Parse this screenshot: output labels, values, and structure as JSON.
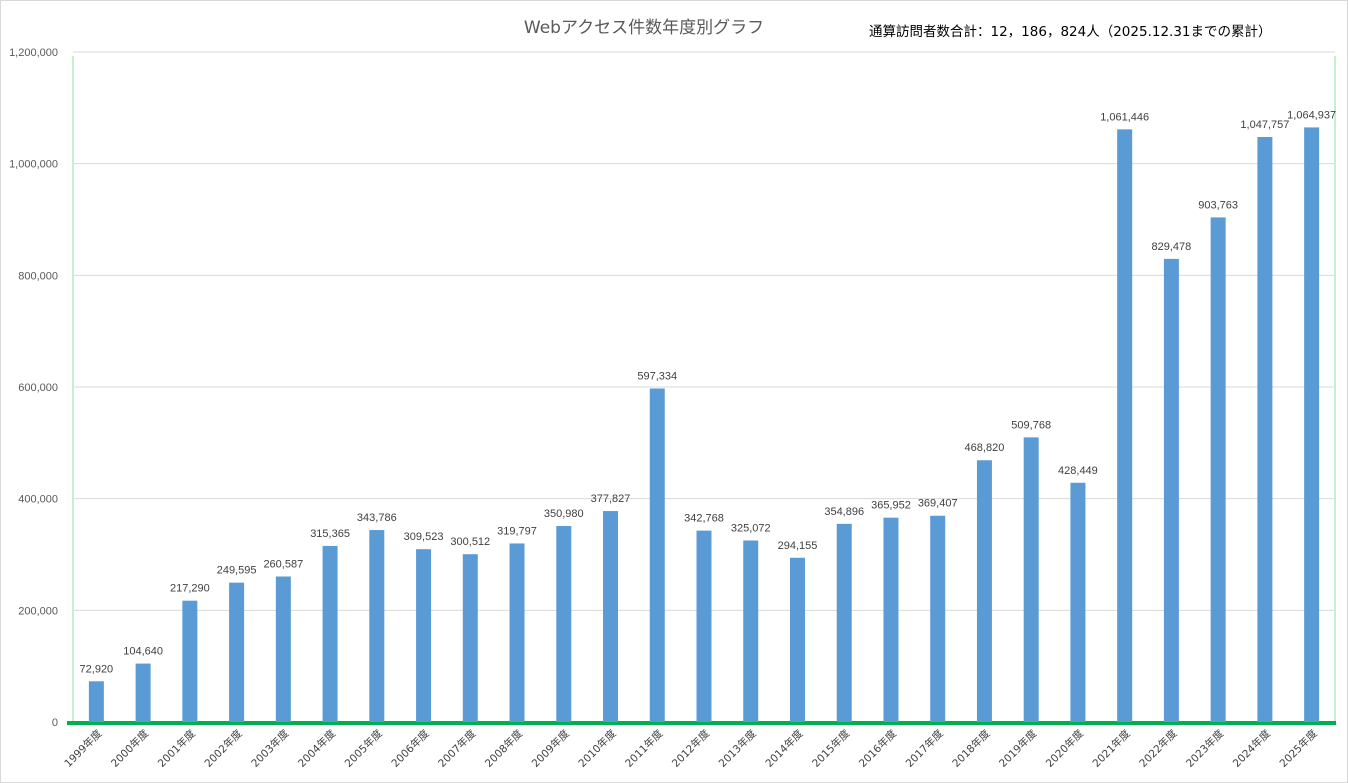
{
  "chart_data": {
    "type": "bar",
    "title": "Webアクセス件数年度別グラフ",
    "subtitle": "通算訪問者数合計：12，186，824人（2025.12.31までの累計）",
    "xlabel": "",
    "ylabel": "",
    "ylim": [
      0,
      1200000
    ],
    "y_ticks": [
      "0",
      "200,000",
      "400,000",
      "600,000",
      "800,000",
      "1,000,000",
      "1,200,000"
    ],
    "y_tick_values": [
      0,
      200000,
      400000,
      600000,
      800000,
      1000000,
      1200000
    ],
    "grid": true,
    "legend": "none",
    "bar_color": "#5b9bd5",
    "axis_color": "#00b050",
    "categories": [
      "1999年度",
      "2000年度",
      "2001年度",
      "2002年度",
      "2003年度",
      "2004年度",
      "2005年度",
      "2006年度",
      "2007年度",
      "2008年度",
      "2009年度",
      "2010年度",
      "2011年度",
      "2012年度",
      "2013年度",
      "2014年度",
      "2015年度",
      "2016年度",
      "2017年度",
      "2018年度",
      "2019年度",
      "2020年度",
      "2021年度",
      "2022年度",
      "2023年度",
      "2024年度",
      "2025年度"
    ],
    "values": [
      72920,
      104640,
      217290,
      249595,
      260587,
      315365,
      343786,
      309523,
      300512,
      319797,
      350980,
      377827,
      597334,
      342768,
      325072,
      294155,
      354896,
      365952,
      369407,
      468820,
      509768,
      428449,
      1061446,
      829478,
      903763,
      1047757,
      1064937
    ],
    "value_labels": [
      "72,920",
      "104,640",
      "217,290",
      "249,595",
      "260,587",
      "315,365",
      "343,786",
      "309,523",
      "300,512",
      "319,797",
      "350,980",
      "377,827",
      "597,334",
      "342,768",
      "325,072",
      "294,155",
      "354,896",
      "365,952",
      "369,407",
      "468,820",
      "509,768",
      "428,449",
      "1,061,446",
      "829,478",
      "903,763",
      "1,047,757",
      "1,064,937"
    ]
  }
}
